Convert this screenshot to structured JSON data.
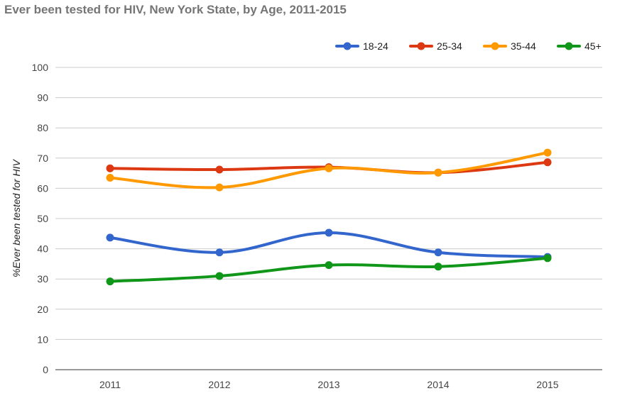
{
  "chart_data": {
    "type": "line",
    "title": "Ever been tested for HIV, New York State, by Age, 2011-2015",
    "xlabel": "",
    "ylabel": "%Ever been tested for HIV",
    "ylim": [
      0,
      100
    ],
    "yticks": [
      0,
      10,
      20,
      30,
      40,
      50,
      60,
      70,
      80,
      90,
      100
    ],
    "categories": [
      "2011",
      "2012",
      "2013",
      "2014",
      "2015"
    ],
    "grid": true,
    "legend": "top-right",
    "series": [
      {
        "name": "18-24",
        "color": "#3366cc",
        "values": [
          43.7,
          38.8,
          45.3,
          38.8,
          37.3
        ]
      },
      {
        "name": "25-34",
        "color": "#dc3912",
        "values": [
          66.6,
          66.2,
          67.0,
          65.2,
          68.6
        ]
      },
      {
        "name": "35-44",
        "color": "#ff9900",
        "values": [
          63.5,
          60.3,
          66.6,
          65.2,
          71.8
        ]
      },
      {
        "name": "45+",
        "color": "#109618",
        "values": [
          29.2,
          31.0,
          34.6,
          34.1,
          36.9
        ]
      }
    ]
  }
}
